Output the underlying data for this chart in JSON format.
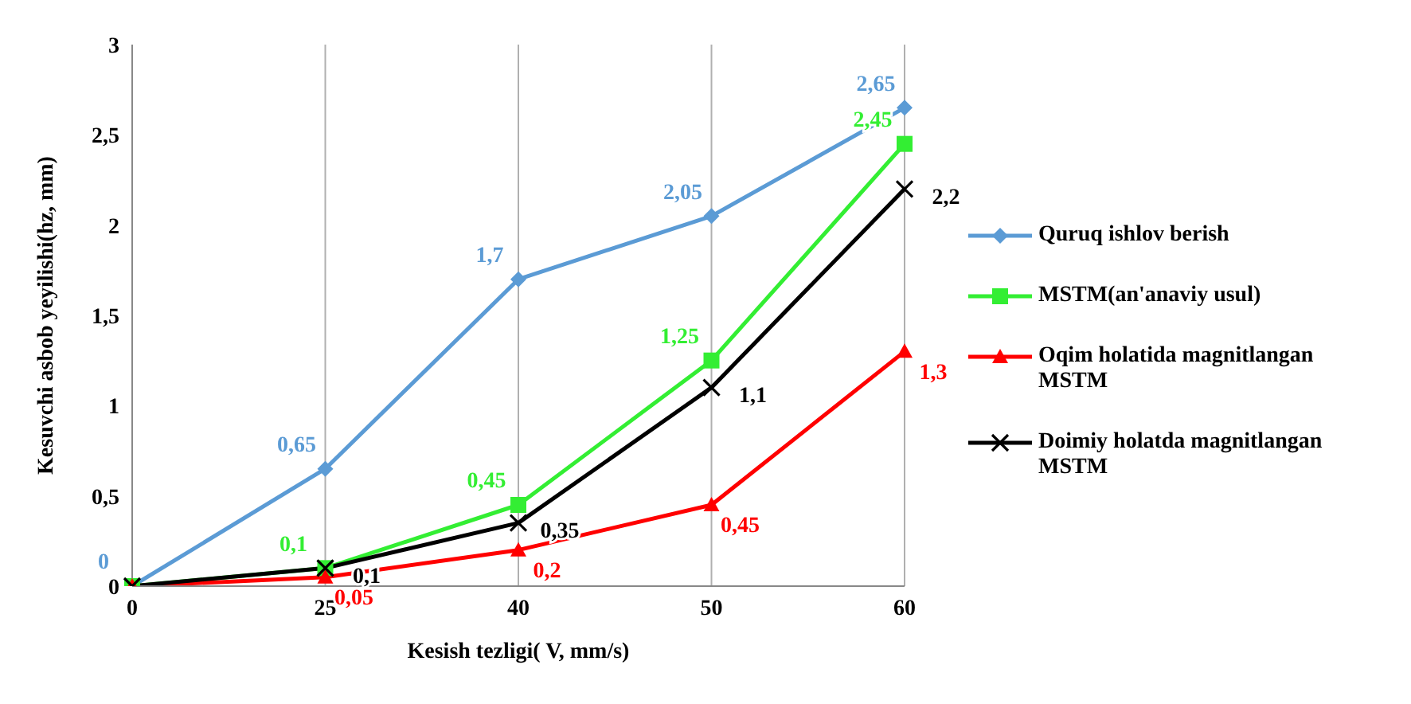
{
  "chart_data": {
    "type": "line",
    "xlabel": "Kesish tezligi( V, mm/s)",
    "ylabel": "Kesuvchi asbob yeyilishi(hz, mm)",
    "categories": [
      "0",
      "25",
      "40",
      "50",
      "60"
    ],
    "ylim": [
      0,
      3
    ],
    "yticks": [
      0,
      {
        "value": 0.5,
        "label": "0,5"
      },
      1,
      {
        "value": 1.5,
        "label": "1,5"
      },
      2,
      {
        "value": 2.5,
        "label": "2,5"
      },
      3
    ],
    "grid": "x",
    "legend": "right",
    "series": [
      {
        "name": "Quruq ishlov berish",
        "color": "#5b9bd5",
        "marker": "diamond",
        "values": [
          0,
          0.65,
          1.7,
          2.05,
          2.65
        ],
        "value_labels": [
          "0",
          "0,65",
          "1,7",
          "2,05",
          "2,65"
        ]
      },
      {
        "name": "MSTM(an'anaviy usul)",
        "color": "#33ee33",
        "marker": "square",
        "values": [
          0,
          0.1,
          0.45,
          1.25,
          2.45
        ],
        "value_labels": [
          null,
          "0,1",
          "0,45",
          "1,25",
          "2,45"
        ]
      },
      {
        "name": "Oqim holatida magnitlangan MSTM",
        "color": "#ff0000",
        "marker": "triangle",
        "values": [
          0,
          0.05,
          0.2,
          0.45,
          1.3
        ],
        "value_labels": [
          null,
          "0,05",
          "0,2",
          "0,45",
          "1,3"
        ]
      },
      {
        "name": "Doimiy holatda magnitlangan MSTM",
        "color": "#000000",
        "marker": "cross",
        "values": [
          0,
          0.1,
          0.35,
          1.1,
          2.2
        ],
        "value_labels": [
          null,
          "0,1",
          "0,35",
          "1,1",
          "2,2"
        ]
      }
    ]
  }
}
